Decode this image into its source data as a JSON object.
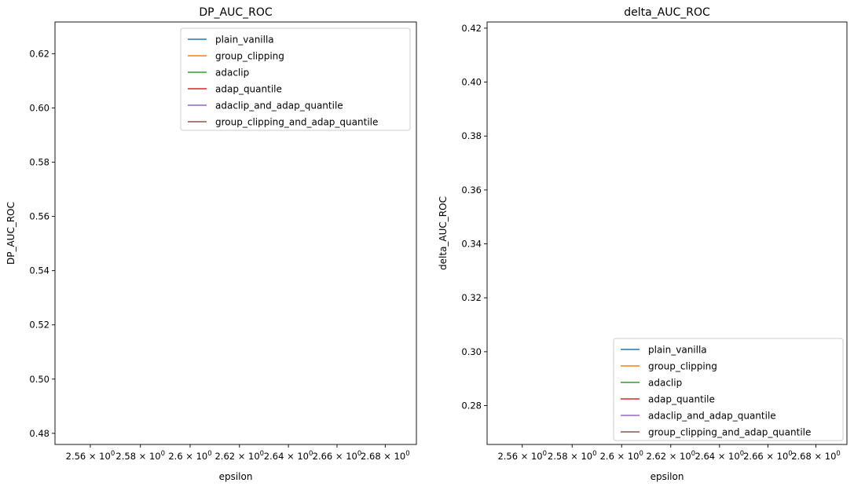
{
  "chart_data": [
    {
      "type": "line",
      "title": "DP_AUC_ROC",
      "xlabel": "epsilon",
      "ylabel": "DP_AUC_ROC",
      "xscale": "log",
      "xlim": [
        2.546,
        2.693
      ],
      "ylim": [
        0.4759,
        0.6317
      ],
      "x_ticks": [
        2.56,
        2.58,
        2.6,
        2.62,
        2.64,
        2.66,
        2.68
      ],
      "x_tick_labels": [
        "2.56 × 10^0",
        "2.58 × 10^0",
        "2.6 × 10^0",
        "2.62 × 10^0",
        "2.64 × 10^0",
        "2.66 × 10^0",
        "2.68 × 10^0"
      ],
      "y_ticks": [
        0.48,
        0.5,
        0.52,
        0.54,
        0.56,
        0.58,
        0.6,
        0.62
      ],
      "y_tick_labels": [
        "0.48",
        "0.50",
        "0.52",
        "0.54",
        "0.56",
        "0.58",
        "0.60",
        "0.62"
      ],
      "legend_position": "upper-right",
      "grid": false,
      "series": [
        {
          "name": "plain_vanilla",
          "color": "#1f77b4",
          "values": []
        },
        {
          "name": "group_clipping",
          "color": "#ff7f0e",
          "values": []
        },
        {
          "name": "adaclip",
          "color": "#2ca02c",
          "values": []
        },
        {
          "name": "adap_quantile",
          "color": "#d62728",
          "values": []
        },
        {
          "name": "adaclip_and_adap_quantile",
          "color": "#9467bd",
          "values": []
        },
        {
          "name": "group_clipping_and_adap_quantile",
          "color": "#8c564b",
          "values": []
        }
      ]
    },
    {
      "type": "line",
      "title": "delta_AUC_ROC",
      "xlabel": "epsilon",
      "ylabel": "delta_AUC_ROC",
      "xscale": "log",
      "xlim": [
        2.546,
        2.693
      ],
      "ylim": [
        0.2656,
        0.4223
      ],
      "x_ticks": [
        2.56,
        2.58,
        2.6,
        2.62,
        2.64,
        2.66,
        2.68
      ],
      "x_tick_labels": [
        "2.56 × 10^0",
        "2.58 × 10^0",
        "2.6 × 10^0",
        "2.62 × 10^0",
        "2.64 × 10^0",
        "2.66 × 10^0",
        "2.68 × 10^0"
      ],
      "y_ticks": [
        0.28,
        0.3,
        0.32,
        0.34,
        0.36,
        0.38,
        0.4,
        0.42
      ],
      "y_tick_labels": [
        "0.28",
        "0.30",
        "0.32",
        "0.34",
        "0.36",
        "0.38",
        "0.40",
        "0.42"
      ],
      "legend_position": "lower-right",
      "grid": false,
      "series": [
        {
          "name": "plain_vanilla",
          "color": "#1f77b4",
          "values": []
        },
        {
          "name": "group_clipping",
          "color": "#ff7f0e",
          "values": []
        },
        {
          "name": "adaclip",
          "color": "#2ca02c",
          "values": []
        },
        {
          "name": "adap_quantile",
          "color": "#d62728",
          "values": []
        },
        {
          "name": "adaclip_and_adap_quantile",
          "color": "#9467bd",
          "values": []
        },
        {
          "name": "group_clipping_and_adap_quantile",
          "color": "#8c564b",
          "values": []
        }
      ]
    }
  ]
}
